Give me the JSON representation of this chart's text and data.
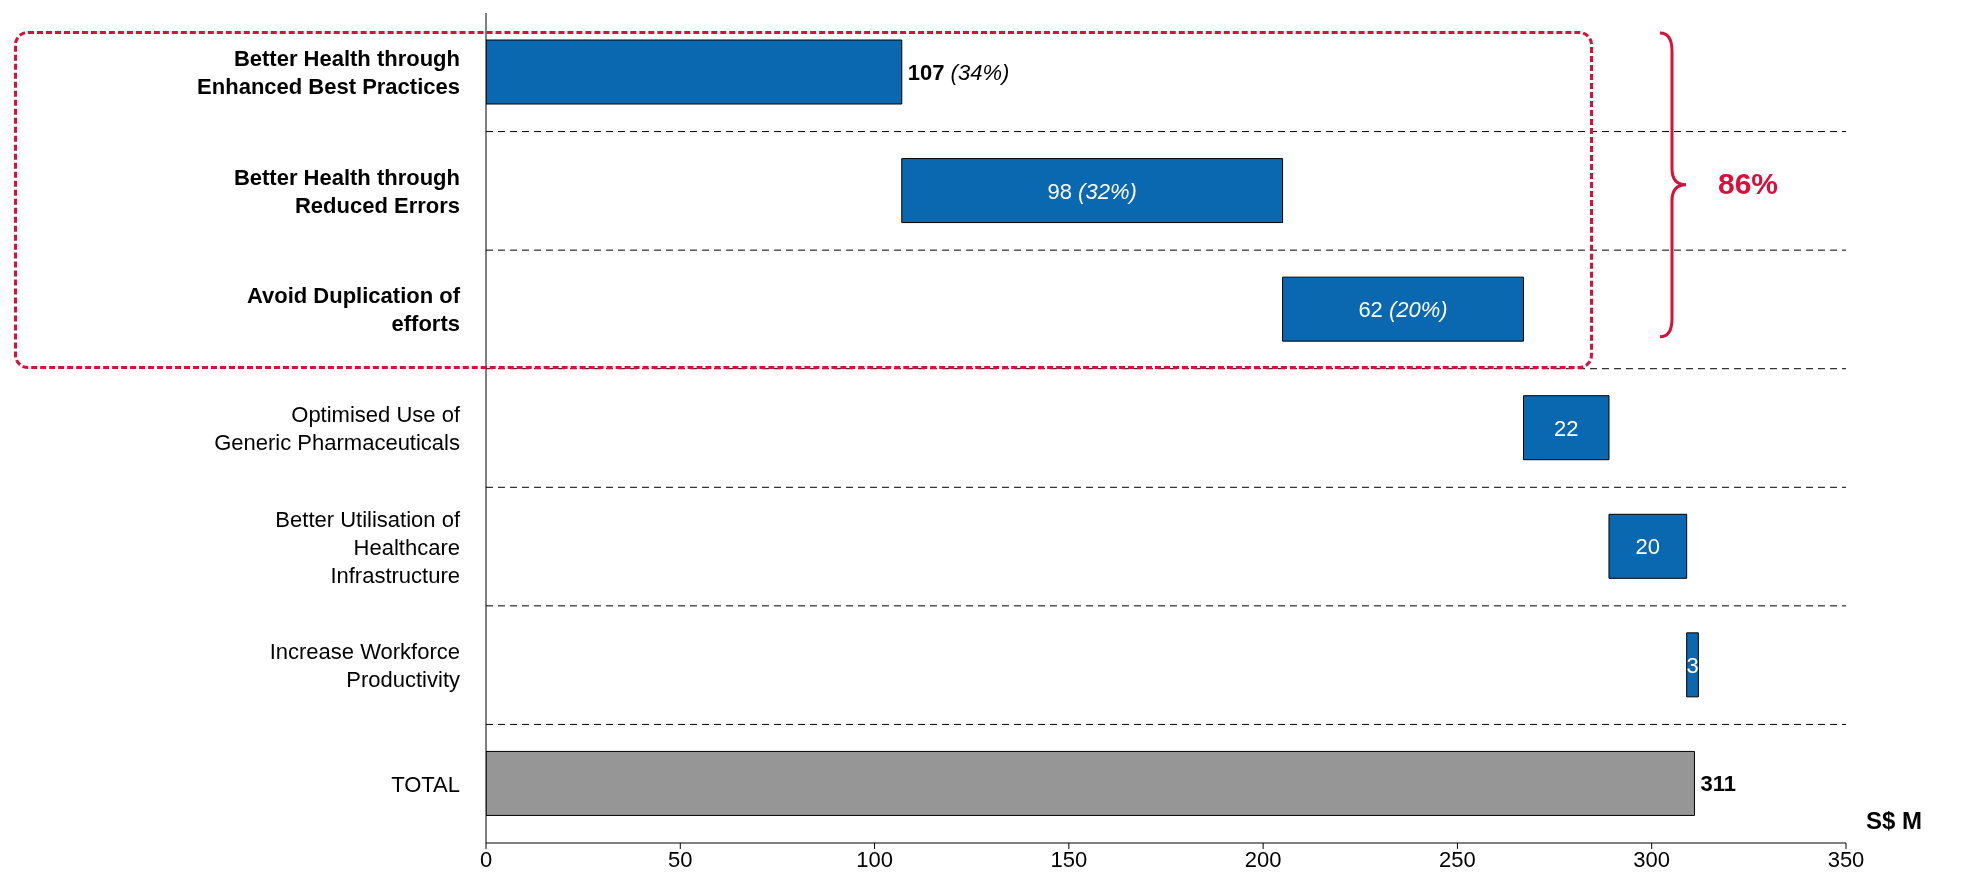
{
  "chart_data": {
    "type": "bar",
    "orientation": "horizontal",
    "categories": [
      "Better Health through Enhanced Best Practices",
      "Better Health through Reduced Errors",
      "Avoid Duplication of efforts",
      "Optimised Use of Generic Pharmaceuticals",
      "Better Utilisation of Healthcare Infrastructure",
      "Increase Workforce Productivity",
      "TOTAL"
    ],
    "values": [
      107,
      98,
      62,
      22,
      20,
      3,
      311
    ],
    "base": [
      0,
      107,
      205,
      267,
      289,
      309,
      0
    ],
    "colors": [
      "#0a68b0",
      "#0a68b0",
      "#0a68b0",
      "#0a68b0",
      "#0a68b0",
      "#0a68b0",
      "#969696"
    ],
    "value_labels": [
      "107 (34%)",
      "98 (32%)",
      "62 (20%)",
      "22",
      "20",
      "3",
      "311"
    ],
    "xlabel": "S$ M",
    "xlim": [
      0,
      350
    ],
    "xticks": [
      0,
      50,
      100,
      150,
      200,
      250,
      300,
      350
    ],
    "grid": "y",
    "annotations": [
      "86%"
    ]
  }
}
